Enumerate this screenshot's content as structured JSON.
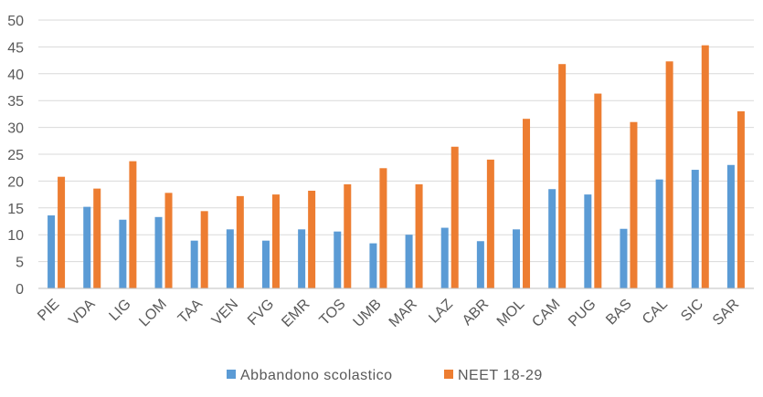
{
  "chart_data": {
    "type": "bar",
    "categories": [
      "PIE",
      "VDA",
      "LIG",
      "LOM",
      "TAA",
      "VEN",
      "FVG",
      "EMR",
      "TOS",
      "UMB",
      "MAR",
      "LAZ",
      "ABR",
      "MOL",
      "CAM",
      "PUG",
      "BAS",
      "CAL",
      "SIC",
      "SAR"
    ],
    "series": [
      {
        "name": "Abbandono scolastico",
        "color": "#5b9bd5",
        "values": [
          13.6,
          15.2,
          12.8,
          13.3,
          8.9,
          11.0,
          8.9,
          11.0,
          10.6,
          8.4,
          10.0,
          11.3,
          8.8,
          11.0,
          18.5,
          17.5,
          11.1,
          20.3,
          22.1,
          23.0
        ]
      },
      {
        "name": "NEET 18-29",
        "color": "#ed7d31",
        "values": [
          20.8,
          18.6,
          23.7,
          17.8,
          14.4,
          17.2,
          17.5,
          18.2,
          19.4,
          22.4,
          19.4,
          26.4,
          24.0,
          31.6,
          41.8,
          36.3,
          31.0,
          42.3,
          45.3,
          33.0
        ]
      }
    ],
    "title": "",
    "xlabel": "",
    "ylabel": "",
    "ylim": [
      0,
      50
    ],
    "yticks": [
      0,
      5,
      10,
      15,
      20,
      25,
      30,
      35,
      40,
      45,
      50
    ],
    "grid": true,
    "legend_position": "bottom"
  }
}
